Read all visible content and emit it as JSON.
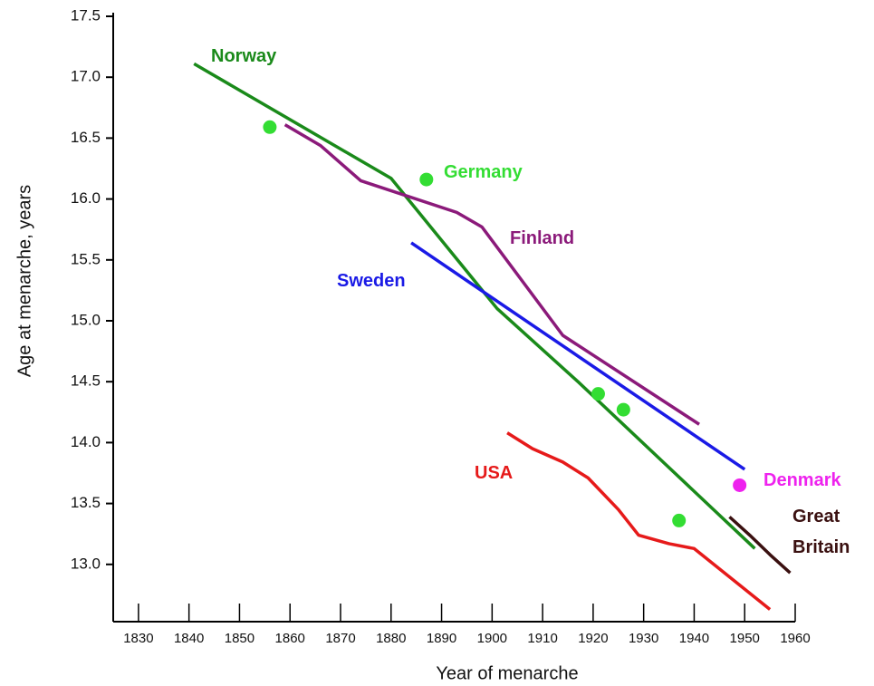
{
  "chart_data": {
    "type": "line",
    "xlabel": "Year of menarche",
    "ylabel": "Age at menarche, years",
    "xlim": [
      1825,
      1960
    ],
    "ylim": [
      12.5,
      17.5
    ],
    "xticks": [
      1830,
      1840,
      1850,
      1860,
      1870,
      1880,
      1890,
      1900,
      1910,
      1920,
      1930,
      1940,
      1950,
      1960
    ],
    "yticks": [
      {
        "value": 13,
        "label": "13.0"
      },
      {
        "value": 13.5,
        "label": "13.5"
      },
      {
        "value": 14,
        "label": "14.0"
      },
      {
        "value": 14.5,
        "label": "14.5"
      },
      {
        "value": 15,
        "label": "15.0"
      },
      {
        "value": 15.5,
        "label": "15.5"
      },
      {
        "value": 16,
        "label": "16.0"
      },
      {
        "value": 16.5,
        "label": "16.5"
      },
      {
        "value": 17,
        "label": "17.0"
      },
      {
        "value": 17.5,
        "label": "17.5"
      }
    ],
    "grid": false,
    "series": [
      {
        "name": "Norway",
        "color": "#1a8a1a",
        "mode": "lines",
        "x": [
          1841,
          1880,
          1901,
          1917,
          1952
        ],
        "values": [
          17.11,
          16.17,
          15.1,
          14.5,
          13.13
        ]
      },
      {
        "name": "Finland",
        "color": "#8b1a7a",
        "mode": "lines",
        "x": [
          1859,
          1866,
          1874,
          1893,
          1898,
          1914,
          1941
        ],
        "values": [
          16.61,
          16.44,
          16.15,
          15.89,
          15.77,
          14.88,
          14.15
        ]
      },
      {
        "name": "Sweden",
        "color": "#1a1ae6",
        "mode": "lines",
        "x": [
          1884,
          1950
        ],
        "values": [
          15.64,
          13.78
        ]
      },
      {
        "name": "USA",
        "color": "#e61a1a",
        "mode": "lines",
        "x": [
          1903,
          1908,
          1914,
          1919,
          1925,
          1929,
          1935,
          1940,
          1955
        ],
        "values": [
          14.08,
          13.95,
          13.84,
          13.71,
          13.45,
          13.24,
          13.17,
          13.13,
          12.63
        ]
      },
      {
        "name": "Great Britain",
        "color": "#3a1010",
        "mode": "lines",
        "x": [
          1947,
          1951,
          1955,
          1959
        ],
        "values": [
          13.39,
          13.24,
          13.08,
          12.93
        ]
      },
      {
        "name": "Germany",
        "color": "#33dd33",
        "mode": "markers",
        "x": [
          1856,
          1887,
          1921,
          1926,
          1937
        ],
        "values": [
          16.59,
          16.16,
          14.4,
          14.27,
          13.36
        ]
      },
      {
        "name": "Denmark",
        "color": "#ee22ee",
        "mode": "markers",
        "x": [
          1949
        ],
        "values": [
          13.65
        ]
      }
    ]
  }
}
